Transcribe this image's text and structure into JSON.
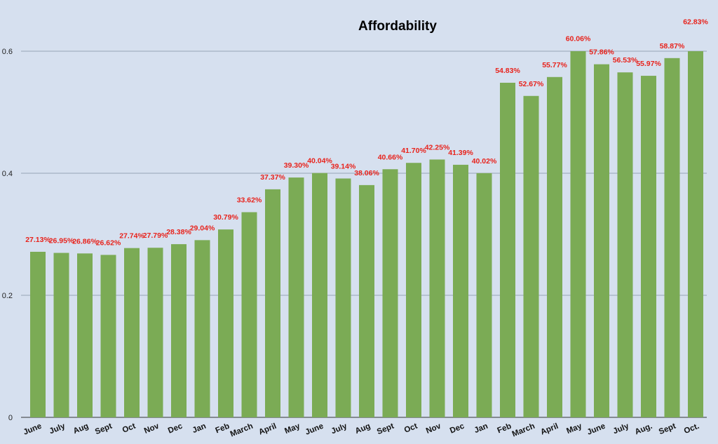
{
  "chart_data": {
    "type": "bar",
    "title": "Affordability",
    "xlabel": "",
    "ylabel": "",
    "ylim": [
      0,
      0.6
    ],
    "yticks": [
      "0",
      "0.2",
      "0.4",
      "0.6"
    ],
    "ytick_values": [
      0,
      0.2,
      0.4,
      0.6
    ],
    "grid": true,
    "bar_color": "#7bab55",
    "label_color": "#e8221b",
    "categories": [
      "June",
      "July",
      "Aug",
      "Sept",
      "Oct",
      "Nov",
      "Dec",
      "Jan",
      "Feb",
      "March",
      "April",
      "May",
      "June",
      "July",
      "Aug",
      "Sept",
      "Oct",
      "Nov",
      "Dec",
      "Jan",
      "Feb",
      "March",
      "April",
      "May",
      "June",
      "July",
      "Aug.",
      "Sept",
      "Oct."
    ],
    "values": [
      0.2713,
      0.2695,
      0.2686,
      0.2662,
      0.2774,
      0.2779,
      0.2838,
      0.2904,
      0.3079,
      0.3362,
      0.3737,
      0.393,
      0.4004,
      0.3914,
      0.3806,
      0.4066,
      0.417,
      0.4225,
      0.4139,
      0.4002,
      0.5483,
      0.5267,
      0.5577,
      0.6006,
      0.5786,
      0.5653,
      0.5597,
      0.5887,
      0.6283
    ],
    "data_labels": [
      "27.13%",
      "26.95%",
      "26.86%",
      "26.62%",
      "27.74%",
      "27.79%",
      "28.38%",
      "29.04%",
      "30.79%",
      "33.62%",
      "37.37%",
      "39.30%",
      "40.04%",
      "39.14%",
      "38.06%",
      "40.66%",
      "41.70%",
      "42.25%",
      "41.39%",
      "40.02%",
      "54.83%",
      "52.67%",
      "55.77%",
      "60.06%",
      "57.86%",
      "56.53%",
      "55.97%",
      "58.87%",
      "62.83%"
    ]
  }
}
